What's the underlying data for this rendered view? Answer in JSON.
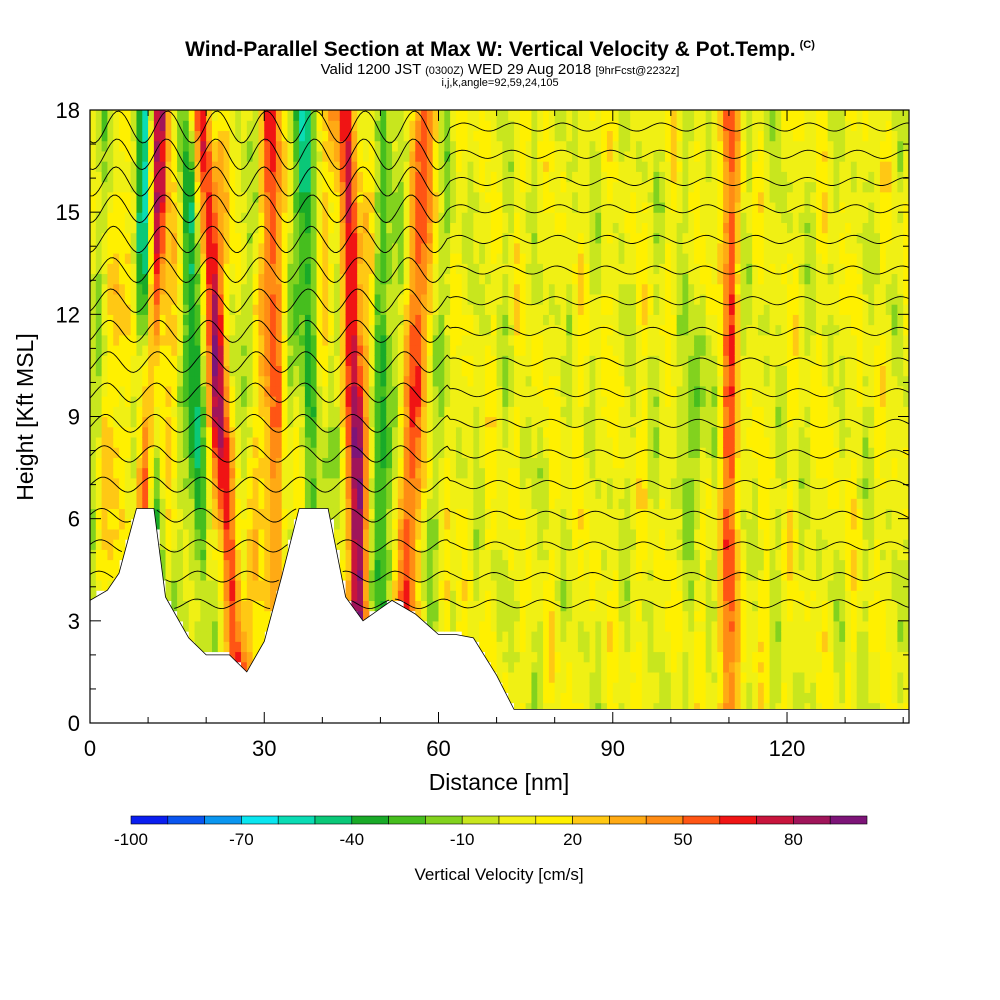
{
  "chart_data": {
    "type": "heatmap",
    "title": "Wind-Parallel Section at Max W: Vertical Velocity & Pot.Temp.",
    "title_mark": "(C)",
    "subtitle_main": "Valid 1200 JST",
    "subtitle_utc": "(0300Z)",
    "subtitle_date": "WED 29 Aug 2018",
    "subtitle_fcst": "[9hrFcst@2232z]",
    "indices": "i,j,k,angle=92,59,24,105",
    "xlabel": "Distance [nm]",
    "ylabel": "Height [Kft MSL]",
    "xlim": [
      0,
      141
    ],
    "ylim": [
      0,
      18
    ],
    "xticks": [
      0,
      30,
      60,
      90,
      120
    ],
    "yticks": [
      0,
      3,
      6,
      9,
      12,
      15,
      18
    ],
    "x_minor_step": 10,
    "y_minor_step": 1,
    "colorbar": {
      "label": "Vertical Velocity [cm/s]",
      "ticks": [
        -100,
        -70,
        -40,
        -10,
        20,
        50,
        80
      ],
      "levels": [
        -100,
        -90,
        -80,
        -70,
        -60,
        -50,
        -40,
        -30,
        -20,
        -10,
        0,
        10,
        20,
        30,
        40,
        50,
        60,
        70,
        80,
        90,
        100
      ],
      "colors": [
        "#0a1ef0",
        "#0a55f0",
        "#0a96f0",
        "#0ae6f0",
        "#0adcb4",
        "#0ac878",
        "#19aa28",
        "#46be1e",
        "#82d21e",
        "#c8e61e",
        "#f0f014",
        "#fff000",
        "#ffc814",
        "#ffaa14",
        "#ff8c14",
        "#ff5514",
        "#f01414",
        "#c8143c",
        "#a0145a",
        "#7d1478"
      ]
    },
    "terrain_kft": [
      [
        0,
        3.6
      ],
      [
        3,
        3.9
      ],
      [
        5,
        4.4
      ],
      [
        8,
        6.3
      ],
      [
        11,
        6.3
      ],
      [
        13,
        3.7
      ],
      [
        17,
        2.5
      ],
      [
        20,
        2.0
      ],
      [
        24,
        2.0
      ],
      [
        27,
        1.5
      ],
      [
        30,
        2.4
      ],
      [
        33,
        4.3
      ],
      [
        36,
        6.3
      ],
      [
        41,
        6.3
      ],
      [
        44,
        3.7
      ],
      [
        47,
        3.0
      ],
      [
        52,
        3.6
      ],
      [
        56,
        3.2
      ],
      [
        60,
        2.6
      ],
      [
        63,
        2.6
      ],
      [
        66,
        2.5
      ],
      [
        70,
        1.4
      ],
      [
        73,
        0.4
      ],
      [
        141,
        0.4
      ]
    ],
    "updraft_bands": [
      {
        "x_bottom": 8,
        "x_top": 12,
        "w": 85
      },
      {
        "x_bottom": 26,
        "x_top": 19,
        "w": 65
      },
      {
        "x_bottom": 33,
        "x_top": 31,
        "w": 40
      },
      {
        "x_bottom": 47,
        "x_top": 44,
        "w": 72
      },
      {
        "x_bottom": 54,
        "x_top": 58,
        "w": 40
      },
      {
        "x_bottom": 110,
        "x_top": 110,
        "w": 45
      }
    ],
    "downdraft_bands": [
      {
        "x_bottom": 12,
        "x_top": 9,
        "w": -65
      },
      {
        "x_bottom": 21,
        "x_top": 16,
        "w": -40
      },
      {
        "x_bottom": 39,
        "x_top": 37,
        "w": -45
      },
      {
        "x_bottom": 50,
        "x_top": 50,
        "w": -30
      }
    ],
    "theta_isentrope_heights_kft": [
      3.5,
      4.3,
      5.2,
      6.1,
      7.0,
      7.9,
      8.8,
      9.7,
      10.6,
      11.5,
      12.4,
      13.3,
      14.2,
      15.1,
      15.9,
      16.7,
      17.5
    ]
  }
}
